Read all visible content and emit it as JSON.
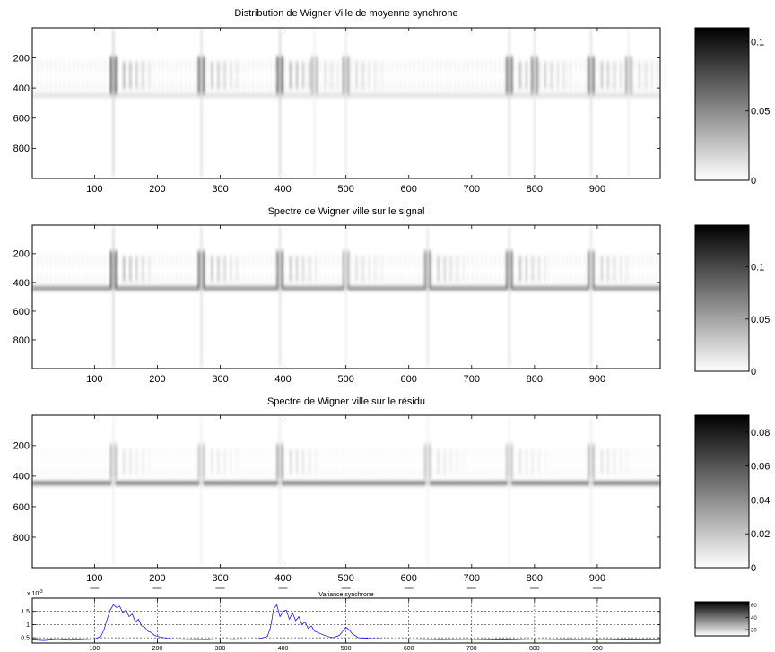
{
  "chart_data": [
    {
      "type": "heatmap",
      "title": "Distribution de Wigner Ville de moyenne synchrone",
      "xlabel": "",
      "ylabel": "",
      "xlim": [
        1,
        1000
      ],
      "ylim": [
        1,
        1000
      ],
      "y_reversed": true,
      "xticks": [
        100,
        200,
        300,
        400,
        500,
        600,
        700,
        800,
        900
      ],
      "yticks": [
        200,
        400,
        600,
        800
      ],
      "colormap": "gray-reversed",
      "colorbar": {
        "clim": [
          0,
          0.11
        ],
        "ticks": [
          0,
          0.05,
          0.1
        ]
      },
      "bands": [
        {
          "y": 320,
          "half_width": 110,
          "level": 0.18
        },
        {
          "y": 450,
          "half_width": 8,
          "level": 0.25
        }
      ],
      "events": [
        {
          "x": 130,
          "strength": 0.95
        },
        {
          "x": 270,
          "strength": 0.75
        },
        {
          "x": 395,
          "strength": 0.95
        },
        {
          "x": 450,
          "strength": 0.35
        },
        {
          "x": 500,
          "strength": 0.45
        },
        {
          "x": 760,
          "strength": 0.75
        },
        {
          "x": 800,
          "strength": 0.55
        },
        {
          "x": 890,
          "strength": 0.7
        },
        {
          "x": 950,
          "strength": 0.4
        }
      ]
    },
    {
      "type": "heatmap",
      "title": "Spectre de Wigner ville sur le signal",
      "xlabel": "",
      "ylabel": "",
      "xlim": [
        1,
        1000
      ],
      "ylim": [
        1,
        1000
      ],
      "y_reversed": true,
      "xticks": [
        100,
        200,
        300,
        400,
        500,
        600,
        700,
        800,
        900
      ],
      "yticks": [
        200,
        400,
        600,
        800
      ],
      "colormap": "gray-reversed",
      "colorbar": {
        "clim": [
          0,
          0.14
        ],
        "ticks": [
          0,
          0.05,
          0.1
        ]
      },
      "bands": [
        {
          "y": 310,
          "half_width": 110,
          "level": 0.15
        },
        {
          "y": 440,
          "half_width": 10,
          "level": 0.8
        }
      ],
      "events": [
        {
          "x": 130,
          "strength": 0.9
        },
        {
          "x": 270,
          "strength": 0.75
        },
        {
          "x": 395,
          "strength": 0.7
        },
        {
          "x": 500,
          "strength": 0.4
        },
        {
          "x": 630,
          "strength": 0.6
        },
        {
          "x": 760,
          "strength": 0.7
        },
        {
          "x": 890,
          "strength": 0.55
        }
      ]
    },
    {
      "type": "heatmap",
      "title": "Spectre de Wigner ville sur le résidu",
      "xlabel": "",
      "ylabel": "",
      "xlim": [
        1,
        1000
      ],
      "ylim": [
        1,
        1000
      ],
      "y_reversed": true,
      "xticks": [
        100,
        200,
        300,
        400,
        500,
        600,
        700,
        800,
        900
      ],
      "yticks": [
        200,
        400,
        600,
        800
      ],
      "colormap": "gray-reversed",
      "colorbar": {
        "clim": [
          0,
          0.09
        ],
        "ticks": [
          0,
          0.02,
          0.04,
          0.06,
          0.08
        ]
      },
      "bands": [
        {
          "y": 310,
          "half_width": 100,
          "level": 0.08
        },
        {
          "y": 445,
          "half_width": 10,
          "level": 0.85
        }
      ],
      "events": [
        {
          "x": 130,
          "strength": 0.35
        },
        {
          "x": 270,
          "strength": 0.3
        },
        {
          "x": 395,
          "strength": 0.45
        },
        {
          "x": 630,
          "strength": 0.3
        },
        {
          "x": 760,
          "strength": 0.3
        },
        {
          "x": 890,
          "strength": 0.35
        }
      ]
    },
    {
      "type": "line",
      "title": "Variance synchrone",
      "xlabel": "",
      "ylabel": "",
      "exponent_label": "x 10",
      "exponent_power": "-3",
      "xlim": [
        1,
        1000
      ],
      "ylim": [
        0.3,
        2.0
      ],
      "xticks": [
        100,
        200,
        300,
        400,
        500,
        600,
        700,
        800,
        900
      ],
      "yticks": [
        0.5,
        1,
        1.5
      ],
      "ytick_labels": [
        "0.5",
        "1",
        "1.5"
      ],
      "grid": true,
      "series_color": "#0000ff",
      "series": [
        {
          "x": [
            1,
            20,
            40,
            60,
            80,
            100,
            110,
            115,
            120,
            125,
            130,
            135,
            140,
            145,
            150,
            155,
            160,
            165,
            170,
            175,
            180,
            185,
            190,
            195,
            200,
            215,
            230,
            250,
            280,
            300,
            320,
            340,
            360,
            375,
            380,
            385,
            390,
            395,
            400,
            405,
            410,
            415,
            420,
            425,
            430,
            435,
            440,
            445,
            450,
            455,
            460,
            470,
            480,
            490,
            495,
            500,
            505,
            510,
            520,
            540,
            560,
            600,
            650,
            700,
            750,
            800,
            850,
            900,
            950,
            1000
          ],
          "y": [
            0.42,
            0.4,
            0.44,
            0.41,
            0.43,
            0.45,
            0.55,
            0.8,
            1.2,
            1.55,
            1.75,
            1.65,
            1.7,
            1.45,
            1.55,
            1.3,
            1.4,
            1.1,
            1.2,
            0.95,
            0.9,
            0.75,
            0.7,
            0.6,
            0.55,
            0.48,
            0.45,
            0.44,
            0.43,
            0.46,
            0.44,
            0.45,
            0.45,
            0.55,
            0.9,
            1.6,
            1.75,
            1.3,
            1.5,
            1.55,
            1.2,
            1.45,
            1.15,
            1.3,
            1.0,
            1.1,
            0.85,
            0.95,
            0.75,
            0.7,
            0.65,
            0.55,
            0.5,
            0.6,
            0.75,
            0.9,
            0.8,
            0.65,
            0.5,
            0.47,
            0.46,
            0.45,
            0.43,
            0.44,
            0.42,
            0.45,
            0.43,
            0.44,
            0.42,
            0.43
          ]
        }
      ],
      "colorbar": {
        "clim": [
          10,
          65
        ],
        "ticks": [
          20,
          40,
          60
        ]
      }
    }
  ]
}
